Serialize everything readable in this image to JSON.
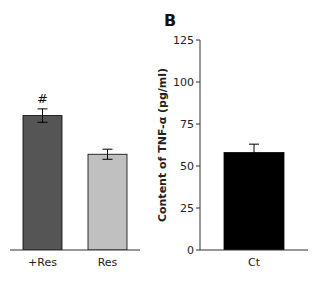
{
  "chart_data": [
    {
      "type": "bar",
      "categories": [
        "+Res",
        "Res"
      ],
      "values": [
        80,
        57
      ],
      "errors": [
        4,
        3
      ],
      "colors": [
        "#555555",
        "#c0c0c0"
      ],
      "ylim": [
        0,
        125
      ],
      "tick_labels": "x",
      "annotations": [
        {
          "x": "+Res",
          "text": "#"
        }
      ]
    },
    {
      "type": "bar",
      "title": "B",
      "categories": [
        "Ct"
      ],
      "values": [
        58
      ],
      "errors": [
        5
      ],
      "color": "#000000",
      "ylabel": "Content of TNF-α (pg/ml)",
      "ylim": [
        0,
        125
      ],
      "yticks": [
        0,
        25,
        50,
        75,
        100,
        125
      ]
    }
  ]
}
